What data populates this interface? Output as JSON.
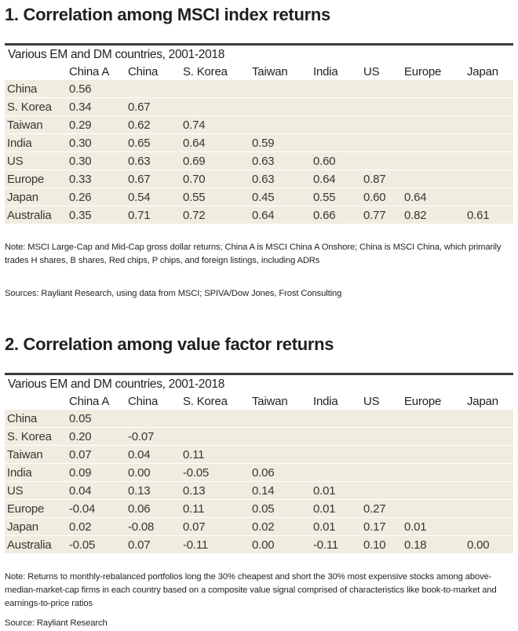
{
  "columns": [
    "China A",
    "China",
    "S. Korea",
    "Taiwan",
    "India",
    "US",
    "Europe",
    "Japan"
  ],
  "section1": {
    "title": "1. Correlation among MSCI index returns",
    "subtitle": "Various EM and DM countries, 2001-2018",
    "rows": [
      {
        "label": "China",
        "values": [
          "0.56"
        ]
      },
      {
        "label": "S. Korea",
        "values": [
          "0.34",
          "0.67"
        ]
      },
      {
        "label": "Taiwan",
        "values": [
          "0.29",
          "0.62",
          "0.74"
        ]
      },
      {
        "label": "India",
        "values": [
          "0.30",
          "0.65",
          "0.64",
          "0.59"
        ]
      },
      {
        "label": "US",
        "values": [
          "0.30",
          "0.63",
          "0.69",
          "0.63",
          "0.60"
        ]
      },
      {
        "label": "Europe",
        "values": [
          "0.33",
          "0.67",
          "0.70",
          "0.63",
          "0.64",
          "0.87"
        ]
      },
      {
        "label": "Japan",
        "values": [
          "0.26",
          "0.54",
          "0.55",
          "0.45",
          "0.55",
          "0.60",
          "0.64"
        ]
      },
      {
        "label": "Australia",
        "values": [
          "0.35",
          "0.71",
          "0.72",
          "0.64",
          "0.66",
          "0.77",
          "0.82",
          "0.61"
        ]
      }
    ],
    "note": "Note: MSCI Large-Cap and Mid-Cap gross dollar returns; China A is MSCI China A Onshore; China is MSCI China, which primarily trades H shares, B shares, Red chips, P chips, and foreign listings, including ADRs",
    "source": "Sources: Rayliant Research, using data from MSCI; SPIVA/Dow Jones, Frost Consulting"
  },
  "section2": {
    "title": "2. Correlation among value factor returns",
    "subtitle": "Various EM and DM countries, 2001-2018",
    "rows": [
      {
        "label": "China",
        "values": [
          "0.05"
        ]
      },
      {
        "label": "S. Korea",
        "values": [
          "0.20",
          "-0.07"
        ]
      },
      {
        "label": "Taiwan",
        "values": [
          "0.07",
          "0.04",
          "0.11"
        ]
      },
      {
        "label": "India",
        "values": [
          "0.09",
          "0.00",
          "-0.05",
          "0.06"
        ]
      },
      {
        "label": "US",
        "values": [
          "0.04",
          "0.13",
          "0.13",
          "0.14",
          "0.01"
        ]
      },
      {
        "label": "Europe",
        "values": [
          "-0.04",
          "0.06",
          "0.11",
          "0.05",
          "0.01",
          "0.27"
        ]
      },
      {
        "label": "Japan",
        "values": [
          "0.02",
          "-0.08",
          "0.07",
          "0.02",
          "0.01",
          "0.17",
          "0.01"
        ]
      },
      {
        "label": "Australia",
        "values": [
          "-0.05",
          "0.07",
          "-0.11",
          "0.00",
          "-0.11",
          "0.10",
          "0.18",
          "0.00"
        ]
      }
    ],
    "note": "Note: Returns to monthly-rebalanced portfolios long the 30% cheapest and short the 30% most expensive stocks among above-median-market-cap firms in each country based on a composite value signal comprised of characteristics like book-to-market and earnings-to-price ratios",
    "source": "Source: Rayliant Research"
  }
}
